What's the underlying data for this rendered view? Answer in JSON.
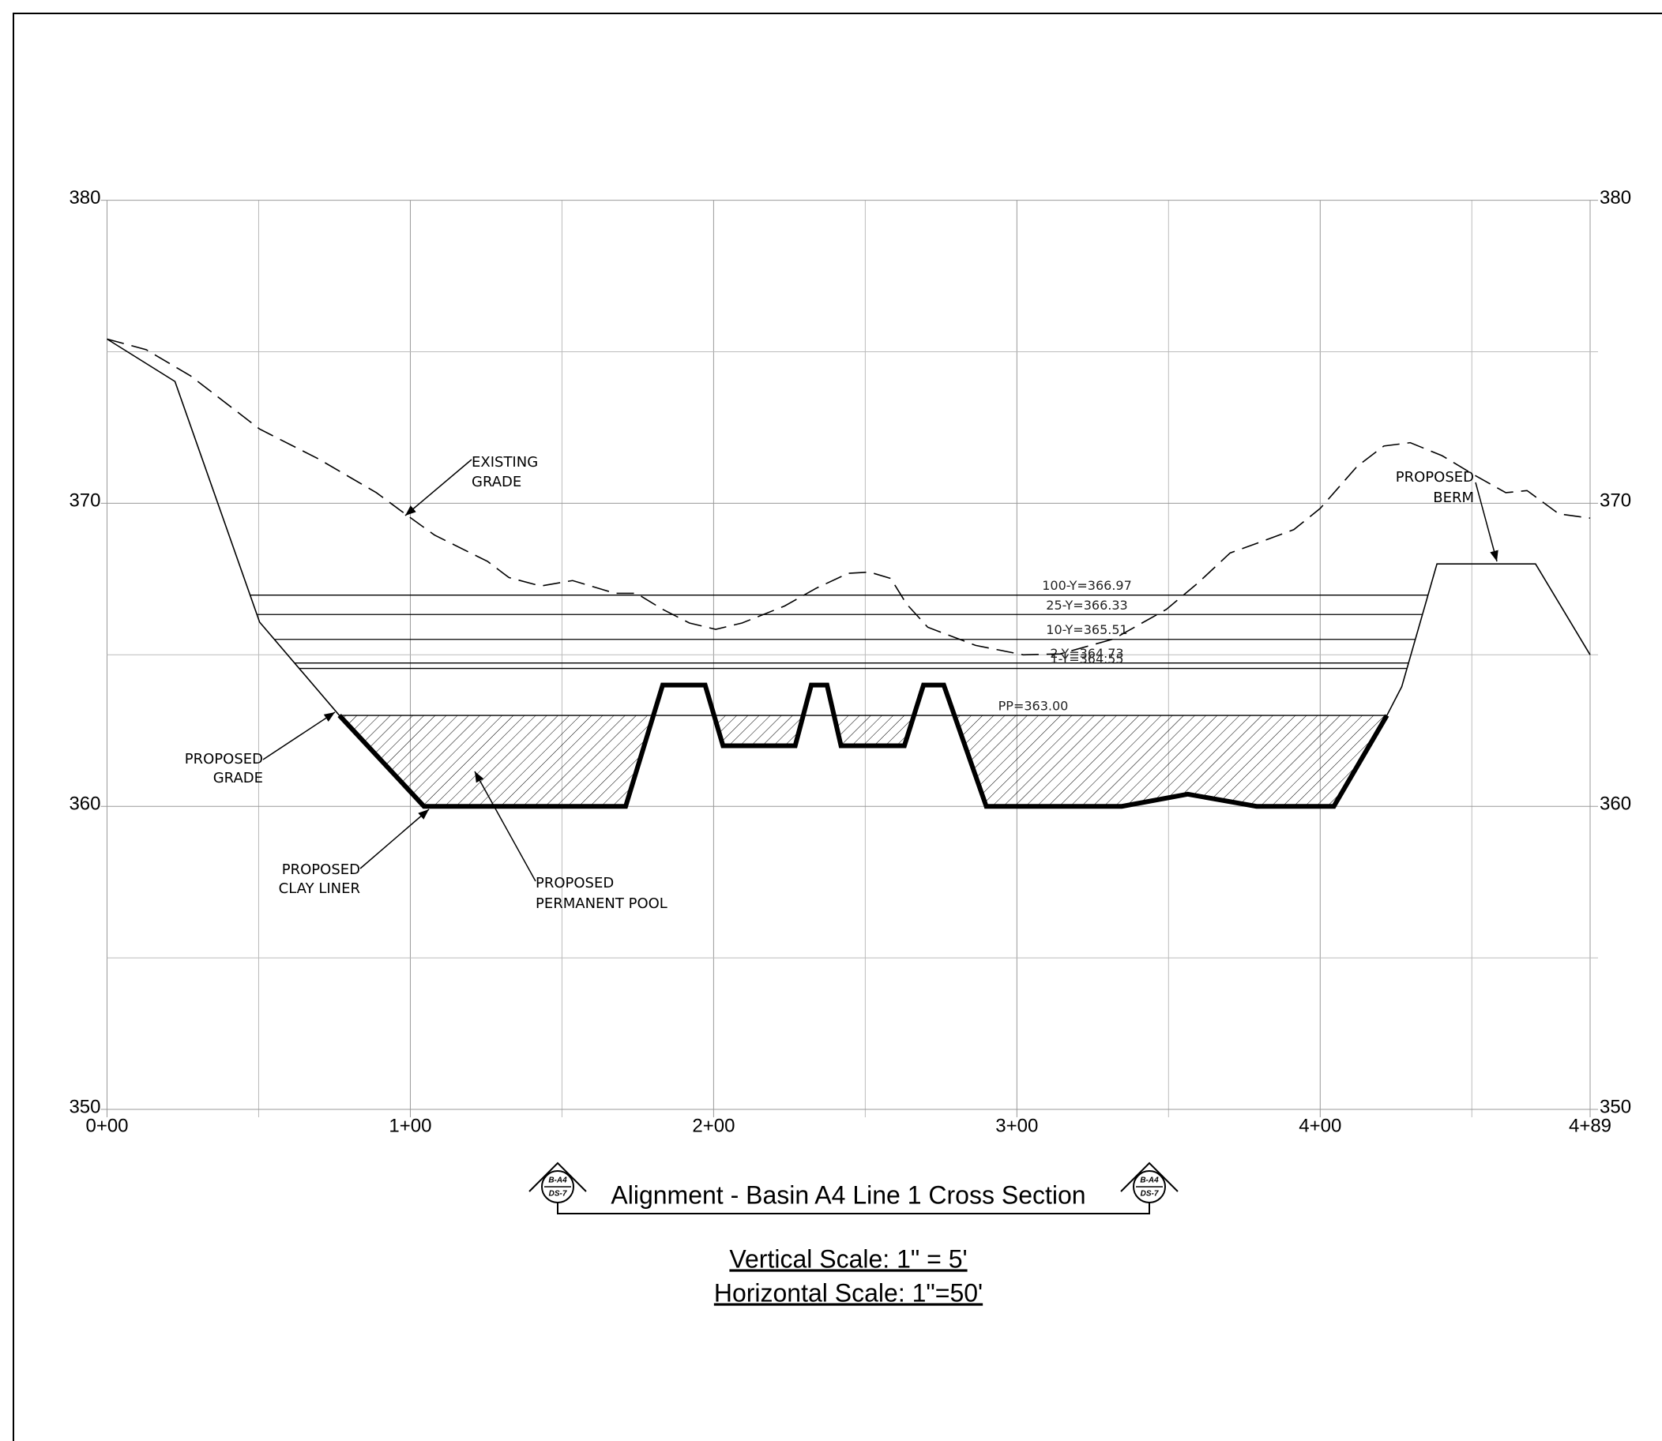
{
  "chart_data": {
    "type": "line",
    "xlim": [
      0,
      489
    ],
    "ylim": [
      350,
      380
    ],
    "xticks": [
      {
        "value": 0,
        "label": "0+00"
      },
      {
        "value": 100,
        "label": "1+00"
      },
      {
        "value": 200,
        "label": "2+00"
      },
      {
        "value": 300,
        "label": "3+00"
      },
      {
        "value": 400,
        "label": "4+00"
      },
      {
        "value": 489,
        "label": "4+89"
      }
    ],
    "x_minor_ticks": [
      50,
      150,
      250,
      350,
      450
    ],
    "yticks": [
      350,
      360,
      370,
      380
    ],
    "y_minor_ticks": [
      355,
      365,
      375
    ],
    "grid": true,
    "series": [
      {
        "style": "dashed",
        "color": "#000000",
        "x": [
          0,
          12.9,
          27.6,
          50.3,
          69.6,
          88.8,
          98.3,
          108.0,
          125.5,
          132.5,
          143.0,
          153.5,
          167.5,
          174.5,
          183.2,
          192.0,
          200.7,
          209.4,
          223.4,
          233.9,
          244.4,
          251.4,
          258.4,
          263.6,
          270.6,
          286.4,
          302.1,
          314.3,
          331.8,
          349.3,
          359.8,
          370.3,
          380.8,
          391.3,
          400.0,
          412.2,
          421.0,
          429.7,
          440.2,
          450.7,
          461.2,
          468.2,
          478.7,
          489
        ],
        "values": [
          375.42,
          375.07,
          374.2,
          372.45,
          371.47,
          370.35,
          369.65,
          368.95,
          368.08,
          367.55,
          367.27,
          367.45,
          367.03,
          367.03,
          366.5,
          366.05,
          365.84,
          366.05,
          366.61,
          367.2,
          367.69,
          367.73,
          367.52,
          366.68,
          365.91,
          365.31,
          365.0,
          365.03,
          365.52,
          366.5,
          367.38,
          368.36,
          368.74,
          369.13,
          369.83,
          371.22,
          371.89,
          372.0,
          371.57,
          370.94,
          370.35,
          370.42,
          369.65,
          369.51
        ]
      },
      {
        "style": "thin",
        "color": "#000000",
        "x": [
          0,
          22.4,
          50.3,
          76.6,
          null,
          422.0,
          426.9,
          438.5,
          471.0,
          489
        ],
        "values": [
          375.42,
          374.02,
          366.08,
          363.0,
          null,
          363.0,
          363.95,
          368.0,
          368.0,
          365.0
        ]
      },
      {
        "style": "thick",
        "color": "#000000",
        "x": [
          76.6,
          104.5,
          171.0,
          183.2,
          197.2,
          203.1,
          226.9,
          232.2,
          237.4,
          242.0,
          262.9,
          269.2,
          275.9,
          289.9,
          334.6,
          356.3,
          379.0,
          404.5,
          422.0
        ],
        "values": [
          363.0,
          360.0,
          360.0,
          364.0,
          364.0,
          362.0,
          362.0,
          364.0,
          364.0,
          362.0,
          362.0,
          364.0,
          364.0,
          360.0,
          360.0,
          360.4,
          360.0,
          360.0,
          363.0
        ]
      }
    ],
    "levels": [
      {
        "value": 366.97,
        "label": "100-Y=366.97"
      },
      {
        "value": 366.33,
        "label": "25-Y=366.33"
      },
      {
        "value": 365.51,
        "label": "10-Y=365.51"
      },
      {
        "value": 364.73,
        "label": "2-Y=364.73"
      },
      {
        "value": 364.55,
        "label": "1-Y=364.55"
      },
      {
        "value": 363.0,
        "label": "PP=363.00"
      }
    ],
    "annotations": {
      "existing_grade": [
        "EXISTING",
        "GRADE"
      ],
      "proposed_berm": [
        "PROPOSED",
        "BERM"
      ],
      "proposed_grade": [
        "PROPOSED",
        "GRADE"
      ],
      "clay_liner": [
        "PROPOSED",
        "CLAY LINER"
      ],
      "permanent_pool": [
        "PROPOSED",
        "PERMANENT POOL"
      ]
    },
    "title": "Alignment - Basin A4 Line 1 Cross Section",
    "section_marker": {
      "top": "B-A4",
      "bottom": "DS-7"
    },
    "vertical_scale": "Vertical Scale: 1\" = 5'",
    "horizontal_scale": "Horizontal Scale: 1\"=50'"
  }
}
